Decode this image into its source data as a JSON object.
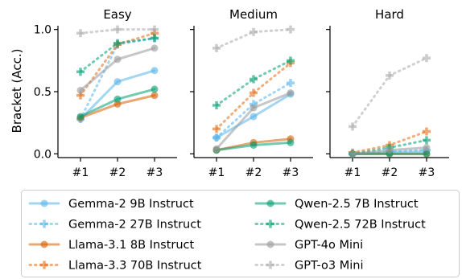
{
  "chart_data": {
    "type": "line",
    "ylabel": "Bracket (Acc.)",
    "ylim": [
      -0.03,
      1.03
    ],
    "yticks": [
      0.0,
      0.5,
      1.0
    ],
    "ytick_labels": [
      "0.0",
      "0.5",
      "1.0"
    ],
    "categories": [
      "#1",
      "#2",
      "#3"
    ],
    "grid": false,
    "legend_position": "bottom",
    "panels": [
      {
        "title": "Easy",
        "series": [
          {
            "name": "Gemma-2 9B Instruct",
            "values": [
              0.28,
              0.58,
              0.67
            ]
          },
          {
            "name": "Gemma-2 27B Instruct",
            "values": [
              0.28,
              0.88,
              0.93
            ]
          },
          {
            "name": "Llama-3.1 8B Instruct",
            "values": [
              0.29,
              0.4,
              0.47
            ]
          },
          {
            "name": "Llama-3.3 70B Instruct",
            "values": [
              0.47,
              0.88,
              0.97
            ]
          },
          {
            "name": "Qwen-2.5 7B Instruct",
            "values": [
              0.3,
              0.44,
              0.52
            ]
          },
          {
            "name": "Qwen-2.5 72B Instruct",
            "values": [
              0.66,
              0.89,
              0.93
            ]
          },
          {
            "name": "GPT-4o Mini",
            "values": [
              0.51,
              0.76,
              0.85
            ]
          },
          {
            "name": "GPT-o3 Mini",
            "values": [
              0.97,
              1.0,
              1.0
            ]
          }
        ]
      },
      {
        "title": "Medium",
        "series": [
          {
            "name": "Gemma-2 9B Instruct",
            "values": [
              0.13,
              0.3,
              0.48
            ]
          },
          {
            "name": "Gemma-2 27B Instruct",
            "values": [
              0.13,
              0.4,
              0.57
            ]
          },
          {
            "name": "Llama-3.1 8B Instruct",
            "values": [
              0.03,
              0.09,
              0.12
            ]
          },
          {
            "name": "Llama-3.3 70B Instruct",
            "values": [
              0.2,
              0.49,
              0.73
            ]
          },
          {
            "name": "Qwen-2.5 7B Instruct",
            "values": [
              0.03,
              0.07,
              0.09
            ]
          },
          {
            "name": "Qwen-2.5 72B Instruct",
            "values": [
              0.39,
              0.6,
              0.75
            ]
          },
          {
            "name": "GPT-4o Mini",
            "values": [
              0.04,
              0.37,
              0.49
            ]
          },
          {
            "name": "GPT-o3 Mini",
            "values": [
              0.85,
              0.98,
              1.0
            ]
          }
        ]
      },
      {
        "title": "Hard",
        "series": [
          {
            "name": "Gemma-2 9B Instruct",
            "values": [
              0.0,
              0.01,
              0.02
            ]
          },
          {
            "name": "Gemma-2 27B Instruct",
            "values": [
              0.0,
              0.02,
              0.03
            ]
          },
          {
            "name": "Llama-3.1 8B Instruct",
            "values": [
              0.0,
              0.0,
              0.0
            ]
          },
          {
            "name": "Llama-3.3 70B Instruct",
            "values": [
              0.01,
              0.07,
              0.18
            ]
          },
          {
            "name": "Qwen-2.5 7B Instruct",
            "values": [
              0.0,
              0.0,
              0.0
            ]
          },
          {
            "name": "Qwen-2.5 72B Instruct",
            "values": [
              0.0,
              0.05,
              0.11
            ]
          },
          {
            "name": "GPT-4o Mini",
            "values": [
              0.0,
              0.03,
              0.05
            ]
          },
          {
            "name": "GPT-o3 Mini",
            "values": [
              0.22,
              0.63,
              0.77
            ]
          }
        ]
      }
    ],
    "series_styles": [
      {
        "name": "Gemma-2 9B Instruct",
        "color": "#56b4e9",
        "dash": "solid",
        "marker": "circle"
      },
      {
        "name": "Gemma-2 27B Instruct",
        "color": "#56b4e9",
        "dash": "dotted",
        "marker": "plus"
      },
      {
        "name": "Llama-3.1 8B Instruct",
        "color": "#d55e00",
        "dash": "solid",
        "marker": "circle"
      },
      {
        "name": "Llama-3.3 70B Instruct",
        "color": "#e66a0f",
        "dash": "dotted",
        "marker": "plus"
      },
      {
        "name": "Qwen-2.5 7B Instruct",
        "color": "#009e73",
        "dash": "solid",
        "marker": "circle"
      },
      {
        "name": "Qwen-2.5 72B Instruct",
        "color": "#009e73",
        "dash": "dotted",
        "marker": "plus"
      },
      {
        "name": "GPT-4o Mini",
        "color": "#999999",
        "dash": "solid",
        "marker": "circle"
      },
      {
        "name": "GPT-o3 Mini",
        "color": "#aaaaaa",
        "dash": "dotted",
        "marker": "plus"
      }
    ]
  }
}
